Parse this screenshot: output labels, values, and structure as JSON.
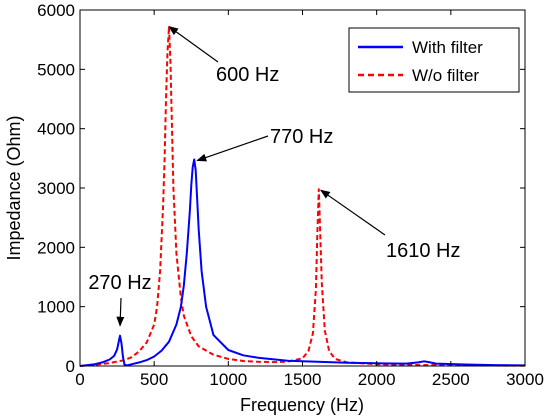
{
  "chart_data": {
    "type": "line",
    "xlabel": "Frequency (Hz)",
    "ylabel": "Impedance (Ohm)",
    "xlim": [
      0,
      3000
    ],
    "ylim": [
      0,
      6000
    ],
    "xticks": [
      0,
      500,
      1000,
      1500,
      2000,
      2500,
      3000
    ],
    "yticks": [
      0,
      1000,
      2000,
      3000,
      4000,
      5000,
      6000
    ],
    "grid": false,
    "legend_position": "top-right",
    "colors": {
      "with_filter": "#0000ff",
      "wo_filter": "#ff0000"
    },
    "series": [
      {
        "name": "With filter",
        "style": "solid",
        "x": [
          0,
          100,
          150,
          200,
          230,
          250,
          260,
          270,
          280,
          290,
          300,
          320,
          350,
          400,
          450,
          500,
          550,
          600,
          650,
          680,
          700,
          720,
          740,
          750,
          760,
          770,
          780,
          790,
          800,
          820,
          850,
          900,
          1000,
          1100,
          1200,
          1400,
          1600,
          1800,
          2000,
          2200,
          2280,
          2320,
          2360,
          2400,
          2600,
          2800,
          3000
        ],
        "values": [
          0,
          30,
          60,
          110,
          170,
          280,
          400,
          510,
          380,
          150,
          20,
          10,
          30,
          60,
          100,
          160,
          260,
          410,
          700,
          1000,
          1350,
          1900,
          2600,
          3050,
          3350,
          3480,
          3300,
          2800,
          2300,
          1600,
          1000,
          520,
          270,
          180,
          140,
          90,
          70,
          55,
          45,
          40,
          60,
          80,
          60,
          40,
          25,
          15,
          10
        ]
      },
      {
        "name": "W/o filter",
        "style": "dashed",
        "x": [
          0,
          100,
          200,
          300,
          350,
          400,
          450,
          500,
          520,
          540,
          560,
          570,
          580,
          590,
          600,
          610,
          620,
          630,
          650,
          680,
          700,
          750,
          800,
          900,
          1000,
          1100,
          1200,
          1300,
          1400,
          1500,
          1540,
          1570,
          1590,
          1600,
          1610,
          1620,
          1630,
          1650,
          1680,
          1720,
          1800,
          2000,
          2200,
          2300,
          2400,
          2600,
          3000
        ],
        "values": [
          0,
          20,
          50,
          100,
          150,
          250,
          400,
          700,
          1000,
          1600,
          2700,
          3500,
          4500,
          5300,
          5720,
          5100,
          4000,
          3000,
          1900,
          1150,
          850,
          500,
          330,
          190,
          120,
          85,
          70,
          65,
          75,
          130,
          250,
          550,
          1300,
          2200,
          2980,
          2200,
          1400,
          600,
          250,
          120,
          60,
          30,
          20,
          15,
          15,
          10,
          5
        ]
      }
    ],
    "annotations": [
      {
        "text": "600 Hz",
        "x": 600,
        "y": 5720
      },
      {
        "text": "770 Hz",
        "x": 770,
        "y": 3480
      },
      {
        "text": "1610 Hz",
        "x": 1610,
        "y": 2980
      },
      {
        "text": "270 Hz",
        "x": 270,
        "y": 510
      }
    ]
  }
}
